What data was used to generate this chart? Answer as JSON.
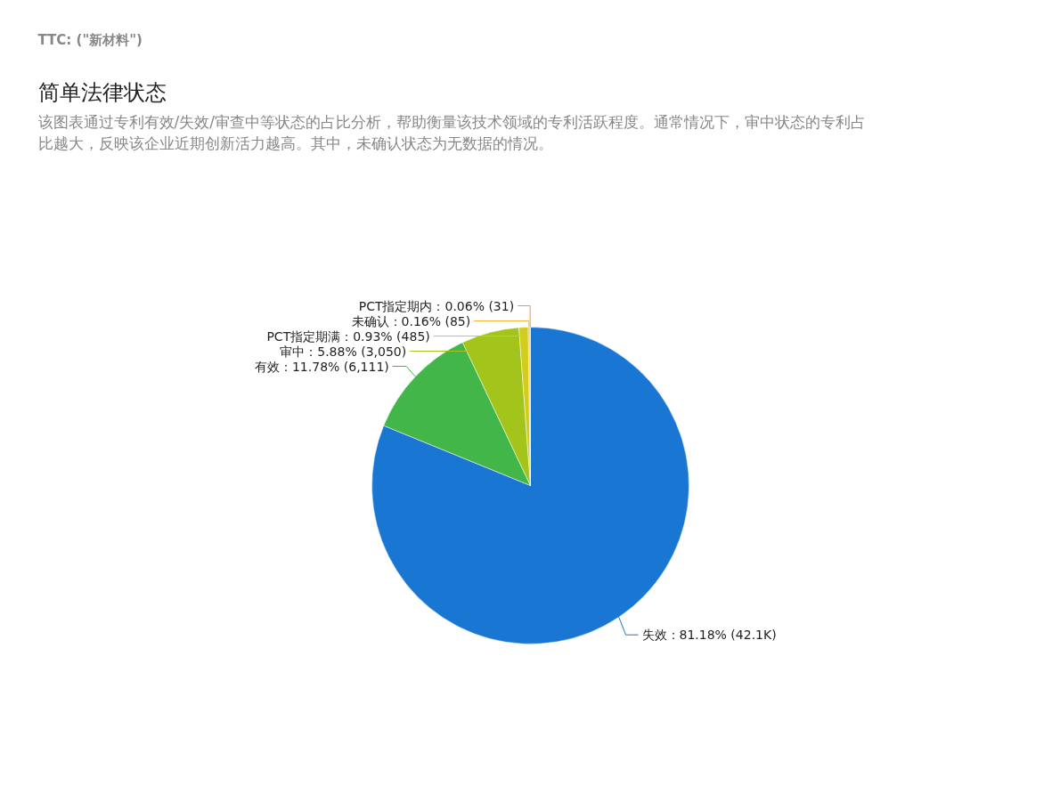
{
  "chart_data": {
    "type": "pie",
    "title": "简单法律状态",
    "subtitle": "该图表通过专利有效/失效/审查中等状态的占比分析，帮助衡量该技术领域的专利活跃程度。通常情况下，审中状态的专利占比越大，反映该企业近期创新活力越高。其中，未确认状态为无数据的情况。",
    "annotations": [
      "TTC: (\"新材料\")"
    ],
    "categories": [
      "失效",
      "有效",
      "审中",
      "PCT指定期满",
      "未确认",
      "PCT指定期内"
    ],
    "values": [
      42100,
      6111,
      3050,
      485,
      85,
      31
    ],
    "value_labels": [
      "81.18% (42.1K)",
      "11.78% (6,111)",
      "5.88% (3,050)",
      "0.93% (485)",
      "0.16% (85)",
      "0.06% (31)"
    ],
    "colors": [
      "#1976d2",
      "#43b649",
      "#a3c51b",
      "#d4cc1c",
      "#f0b73a",
      "#f29a3c"
    ]
  }
}
